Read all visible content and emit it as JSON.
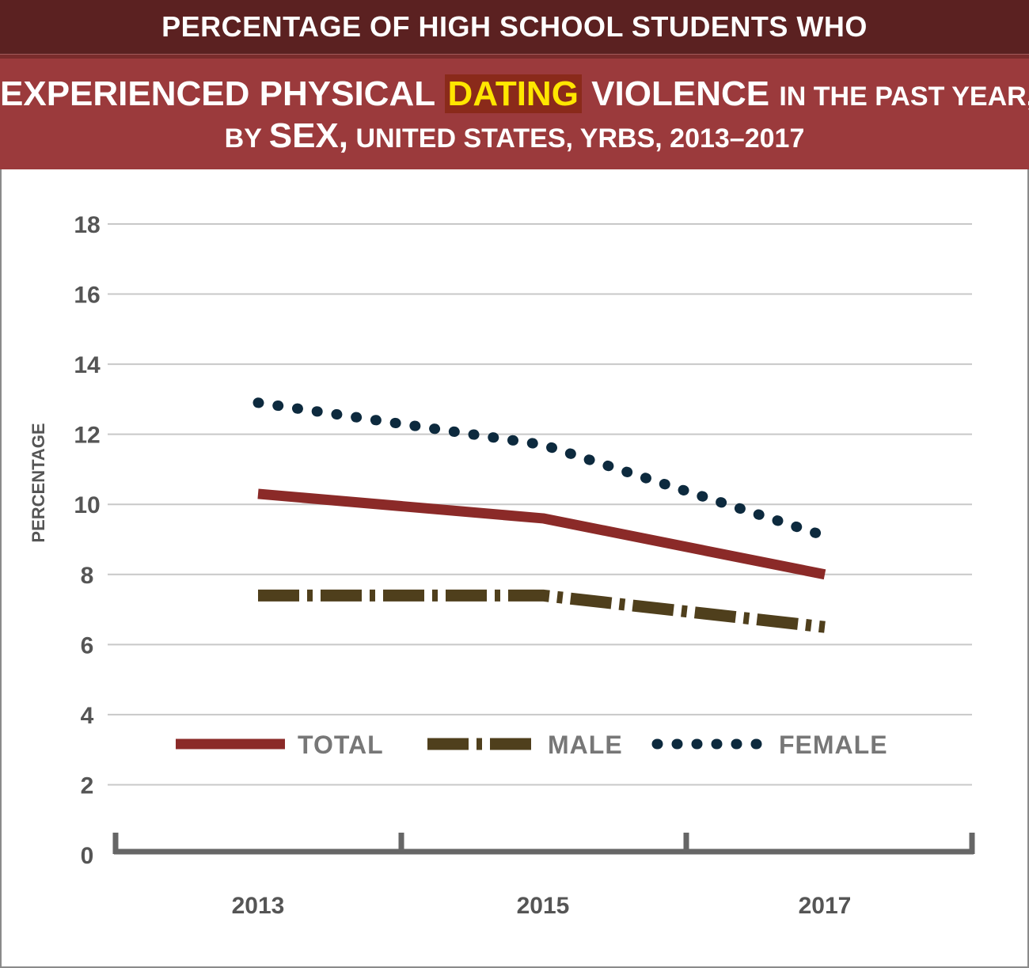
{
  "header": {
    "line1": "PERCENTAGE OF HIGH SCHOOL STUDENTS WHO",
    "line2_a": "EXPERIENCED PHYSICAL",
    "line2_highlight": "DATING",
    "line2_b": "VIOLENCE",
    "line2_c": "IN THE PAST YEAR,",
    "line3_a": "BY",
    "line3_b": "SEX,",
    "line3_c": "UNITED STATES, YRBS, 2013–2017"
  },
  "colors": {
    "header_dark": "#5b2121",
    "header_main": "#9b3a3c",
    "highlight_text": "#ffe600",
    "total": "#8b2a28",
    "male": "#4f3f1c",
    "female": "#0d2a3e",
    "grid": "#c8c8c8",
    "axis": "#666666"
  },
  "chart_data": {
    "type": "line",
    "title": "PERCENTAGE OF HIGH SCHOOL STUDENTS WHO EXPERIENCED PHYSICAL DATING VIOLENCE IN THE PAST YEAR, BY SEX, UNITED STATES, YRBS, 2013–2017",
    "xlabel": "",
    "ylabel": "PERCENTAGE",
    "categories": [
      "2013",
      "2015",
      "2017"
    ],
    "ylim": [
      0,
      18
    ],
    "yticks": [
      "0",
      "2",
      "4",
      "6",
      "8",
      "10",
      "12",
      "14",
      "16",
      "18"
    ],
    "grid": true,
    "legend_position": "bottom",
    "series": [
      {
        "name": "TOTAL",
        "values": [
          10.3,
          9.6,
          8.0
        ],
        "style": "solid",
        "color": "#8b2a28"
      },
      {
        "name": "MALE",
        "values": [
          7.4,
          7.4,
          6.5
        ],
        "style": "dash-dot",
        "color": "#4f3f1c"
      },
      {
        "name": "FEMALE",
        "values": [
          12.9,
          11.7,
          9.1
        ],
        "style": "dotted",
        "color": "#0d2a3e"
      }
    ]
  }
}
